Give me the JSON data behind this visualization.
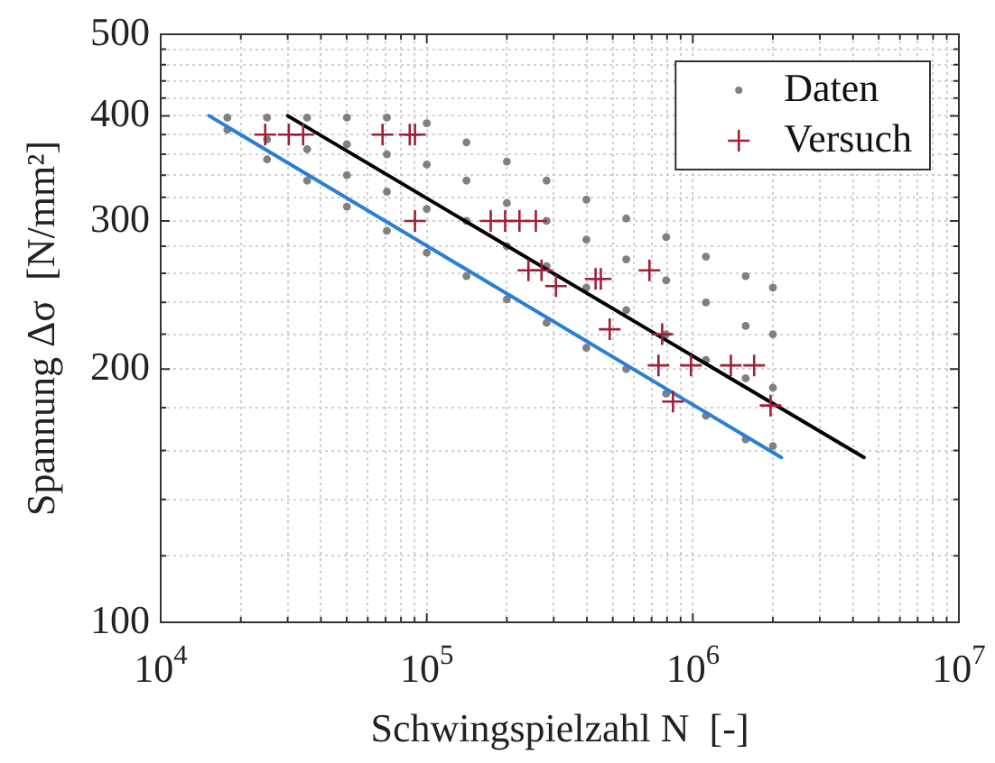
{
  "chart_data": {
    "type": "scatter",
    "xlabel": "Schwingspielzahl N  [-]",
    "ylabel": "Spannung Δσ  [N/mm²]",
    "log": "xy",
    "grid": true,
    "legend": "top right",
    "xlim": [
      10000,
      10000000
    ],
    "xticks": [
      {
        "value": 10000,
        "label": "10$^{4}$"
      },
      {
        "value": 20000,
        "label": null
      },
      {
        "value": 30000,
        "label": null
      },
      {
        "value": 40000,
        "label": null
      },
      {
        "value": 50000,
        "label": null
      },
      {
        "value": 60000,
        "label": null
      },
      {
        "value": 70000,
        "label": null
      },
      {
        "value": 80000,
        "label": null
      },
      {
        "value": 90000,
        "label": null
      },
      {
        "value": 100000,
        "label": "10$^{5}$"
      },
      {
        "value": 200000,
        "label": null
      },
      {
        "value": 300000,
        "label": null
      },
      {
        "value": 400000,
        "label": null
      },
      {
        "value": 500000,
        "label": null
      },
      {
        "value": 600000,
        "label": null
      },
      {
        "value": 700000,
        "label": null
      },
      {
        "value": 800000,
        "label": null
      },
      {
        "value": 900000,
        "label": null
      },
      {
        "value": 1000000,
        "label": "10$^{6}$"
      },
      {
        "value": 2000000,
        "label": null
      },
      {
        "value": 3000000,
        "label": null
      },
      {
        "value": 4000000,
        "label": null
      },
      {
        "value": 5000000,
        "label": null
      },
      {
        "value": 6000000,
        "label": null
      },
      {
        "value": 7000000,
        "label": null
      },
      {
        "value": 8000000,
        "label": null
      },
      {
        "value": 9000000,
        "label": null
      },
      {
        "value": 10000000,
        "label": "10$^{7}$"
      }
    ],
    "ylim": [
      100,
      500
    ],
    "yticks": [
      100,
      {
        "value": 120,
        "label": null
      },
      {
        "value": 140,
        "label": null
      },
      {
        "value": 160,
        "label": null
      },
      {
        "value": 180,
        "label": null
      },
      200,
      {
        "value": 220,
        "label": null
      },
      {
        "value": 240,
        "label": null
      },
      {
        "value": 260,
        "label": null
      },
      {
        "value": 280,
        "label": null
      },
      300,
      {
        "value": 320,
        "label": null
      },
      {
        "value": 340,
        "label": null
      },
      {
        "value": 360,
        "label": null
      },
      {
        "value": 380,
        "label": null
      },
      400,
      {
        "value": 420,
        "label": null
      },
      {
        "value": 440,
        "label": null
      },
      {
        "value": 460,
        "label": null
      },
      {
        "value": 480,
        "label": null
      },
      500
    ],
    "series": [
      {
        "name": "Daten",
        "marker": "circle",
        "color": "#808080",
        "x": [
          17800,
          17800,
          25100,
          25100,
          25100,
          35500,
          35500,
          35500,
          50100,
          50100,
          50100,
          50100,
          70800,
          70800,
          70800,
          70800,
          100000,
          100000,
          100000,
          100000,
          141000,
          141000,
          141000,
          141000,
          200000,
          200000,
          200000,
          200000,
          282000,
          282000,
          282000,
          282000,
          398000,
          398000,
          398000,
          398000,
          562000,
          562000,
          562000,
          562000,
          794000,
          794000,
          794000,
          794000,
          1120000,
          1120000,
          1120000,
          1120000,
          1580000,
          1580000,
          1580000,
          1580000,
          2000000,
          2000000,
          2000000,
          2000000
        ],
        "values": [
          398,
          385,
          398,
          375,
          355,
          398,
          365,
          335,
          398,
          370,
          340,
          312,
          398,
          360,
          325,
          292,
          392,
          350,
          310,
          275,
          372,
          335,
          300,
          258,
          353,
          315,
          280,
          242,
          335,
          300,
          265,
          227,
          318,
          285,
          250,
          212,
          302,
          270,
          235,
          200,
          287,
          255,
          220,
          187,
          272,
          240,
          205,
          176,
          258,
          225,
          195,
          165,
          250,
          220,
          190,
          162
        ]
      },
      {
        "type": "line",
        "marker": "none",
        "color": "#000000",
        "x": [
          30000,
          4400000
        ],
        "values": [
          400,
          157
        ]
      },
      {
        "type": "line",
        "marker": "none",
        "color": "#2a7fd4",
        "x": [
          15200,
          2150000
        ],
        "values": [
          400,
          157
        ]
      },
      {
        "name": "Versuch",
        "marker": "cross",
        "color": "#a0203c",
        "x": [
          24700,
          30300,
          34300,
          68200,
          86300,
          90300,
          90300,
          174000,
          197000,
          223000,
          257000,
          241000,
          270000,
          306000,
          431000,
          451000,
          687000,
          487000,
          767000,
          743000,
          984000,
          1390000,
          1700000,
          1960000,
          842000
        ],
        "values": [
          380,
          380,
          380,
          380,
          380,
          380,
          300,
          300,
          300,
          300,
          300,
          262,
          262,
          251,
          256,
          256,
          262,
          223,
          220,
          202,
          202,
          202,
          202,
          181,
          183
        ]
      }
    ]
  }
}
